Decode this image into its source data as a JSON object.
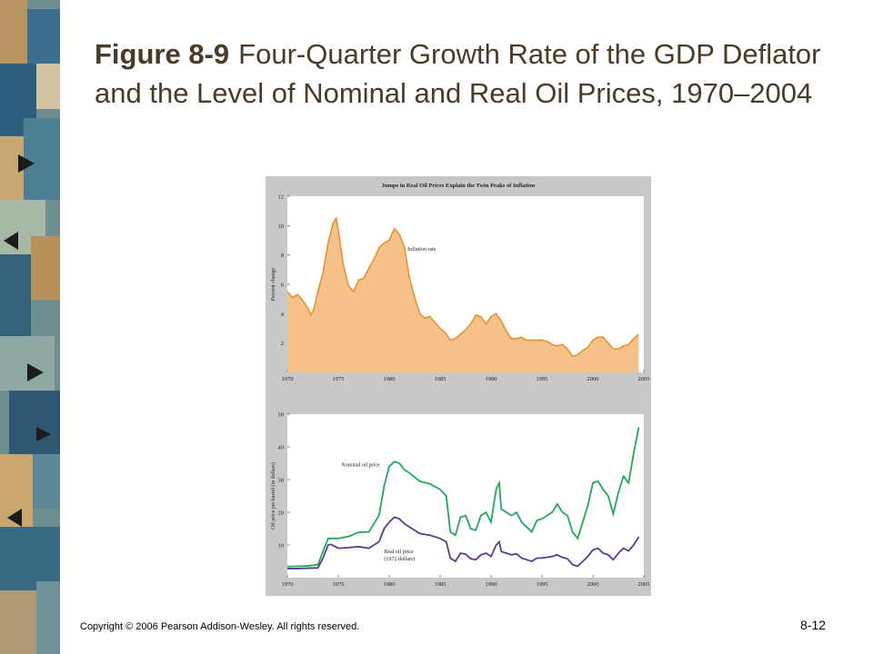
{
  "slide": {
    "figure_label": "Figure 8-9",
    "title": "Four-Quarter Growth Rate of the GDP Deflator and the Level of Nominal and Real Oil Prices, 1970–2004",
    "copyright": "Copyright © 2006 Pearson Addison-Wesley. All rights reserved.",
    "page_number": "8-12"
  },
  "colors": {
    "strip_blue": "#3c6e8e",
    "strip_tan": "#b89460",
    "panel_bg": "#c8c8c8",
    "plot_bg": "#ffffff",
    "inflation_fill": "#f6c28a",
    "inflation_line": "#e8922e",
    "nominal_line": "#1faa59",
    "real_line": "#5a3b8e"
  },
  "chart_data": [
    {
      "type": "area",
      "title": "Jumps in Real Oil Prices Explain the Twin Peaks of Inflation",
      "xlabel": "",
      "ylabel": "Percent change",
      "xlim": [
        1970,
        2005
      ],
      "ylim": [
        0,
        12
      ],
      "xticks": [
        "1970",
        "1975",
        "1980",
        "1985",
        "1990",
        "1995",
        "2000",
        "2005"
      ],
      "yticks": [
        "2",
        "4",
        "6",
        "8",
        "10",
        "12"
      ],
      "grid": false,
      "series": [
        {
          "name": "Inflation rate",
          "x": [
            1970,
            1970.5,
            1971,
            1971.5,
            1972,
            1972.3,
            1972.6,
            1973,
            1973.5,
            1974,
            1974.5,
            1974.8,
            1975.1,
            1975.5,
            1976,
            1976.5,
            1977,
            1977.5,
            1978,
            1978.5,
            1979,
            1979.5,
            1980,
            1980.5,
            1981,
            1981.5,
            1982,
            1982.5,
            1983,
            1983.5,
            1984,
            1984.5,
            1985,
            1985.5,
            1986,
            1986.5,
            1987,
            1987.5,
            1988,
            1988.5,
            1989,
            1989.5,
            1990,
            1990.5,
            1991,
            1991.5,
            1992,
            1992.5,
            1993,
            1993.5,
            1994,
            1994.5,
            1995,
            1995.5,
            1996,
            1996.5,
            1997,
            1997.5,
            1998,
            1998.5,
            1999,
            1999.5,
            2000,
            2000.5,
            2001,
            2001.5,
            2002,
            2002.5,
            2003,
            2003.5,
            2004,
            2004.5
          ],
          "values": [
            5.5,
            5.1,
            5.3,
            4.9,
            4.4,
            3.9,
            4.3,
            5.5,
            6.8,
            8.8,
            10.2,
            10.5,
            9.2,
            7.3,
            5.9,
            5.5,
            6.3,
            6.4,
            7.1,
            7.7,
            8.5,
            8.8,
            9.0,
            9.8,
            9.4,
            8.5,
            6.4,
            5.1,
            4.0,
            3.7,
            3.8,
            3.4,
            3.0,
            2.7,
            2.2,
            2.3,
            2.6,
            2.9,
            3.3,
            3.9,
            3.8,
            3.3,
            3.8,
            4.0,
            3.5,
            2.8,
            2.3,
            2.3,
            2.4,
            2.2,
            2.2,
            2.2,
            2.2,
            2.1,
            1.9,
            1.8,
            1.9,
            1.6,
            1.1,
            1.2,
            1.5,
            1.7,
            2.2,
            2.4,
            2.4,
            2.0,
            1.6,
            1.6,
            1.8,
            1.9,
            2.3,
            2.6
          ]
        }
      ]
    },
    {
      "type": "line",
      "title": "",
      "xlabel": "",
      "ylabel": "Oil price per barrel (in dollars)",
      "xlim": [
        1970,
        2005
      ],
      "ylim": [
        0,
        50
      ],
      "xticks": [
        "1970",
        "1975",
        "1980",
        "1985",
        "1990",
        "1995",
        "2000",
        "2005"
      ],
      "yticks": [
        "10",
        "20",
        "30",
        "40",
        "50"
      ],
      "grid": false,
      "series": [
        {
          "name": "Nominal oil price",
          "x": [
            1970,
            1971,
            1972,
            1973,
            1973.5,
            1974,
            1974.3,
            1975,
            1976,
            1977,
            1978,
            1979,
            1979.5,
            1980,
            1980.5,
            1981,
            1981.5,
            1982,
            1983,
            1984,
            1985,
            1985.6,
            1986,
            1986.5,
            1987,
            1987.5,
            1988,
            1988.5,
            1989,
            1989.5,
            1990,
            1990.5,
            1990.8,
            1991,
            1991.5,
            1992,
            1992.5,
            1993,
            1993.5,
            1994,
            1994.5,
            1995,
            1996,
            1996.5,
            1997,
            1997.5,
            1998,
            1998.5,
            1999,
            1999.5,
            2000,
            2000.5,
            2001,
            2001.5,
            2002,
            2002.5,
            2003,
            2003.5,
            2004,
            2004.5
          ],
          "values": [
            3.4,
            3.5,
            3.6,
            4.0,
            8.0,
            12.0,
            12.0,
            12.0,
            12.6,
            13.9,
            14.0,
            19.0,
            28.0,
            34.0,
            35.5,
            35.0,
            33.0,
            32.0,
            29.5,
            28.7,
            27.0,
            25.0,
            14.0,
            13.0,
            18.5,
            19.0,
            15.0,
            14.5,
            19.0,
            20.0,
            17.0,
            27.0,
            29.0,
            21.0,
            20.0,
            19.0,
            20.0,
            17.0,
            15.5,
            14.0,
            17.5,
            18.0,
            20.0,
            22.5,
            20.0,
            19.0,
            14.0,
            12.0,
            17.0,
            22.0,
            29.0,
            29.5,
            27.0,
            25.0,
            19.5,
            26.0,
            31.0,
            29.0,
            38.0,
            46.0
          ]
        },
        {
          "name": "Real oil price (1972 dollars)",
          "x": [
            1970,
            1971,
            1972,
            1973,
            1973.5,
            1974,
            1974.3,
            1975,
            1976,
            1977,
            1978,
            1979,
            1979.5,
            1980,
            1980.5,
            1981,
            1981.5,
            1982,
            1983,
            1984,
            1985,
            1985.6,
            1986,
            1986.5,
            1987,
            1987.5,
            1988,
            1988.5,
            1989,
            1989.5,
            1990,
            1990.5,
            1990.8,
            1991,
            1991.5,
            1992,
            1992.5,
            1993,
            1993.5,
            1994,
            1994.5,
            1995,
            1996,
            1996.5,
            1997,
            1997.5,
            1998,
            1998.5,
            1999,
            1999.5,
            2000,
            2000.5,
            2001,
            2001.5,
            2002,
            2002.5,
            2003,
            2003.5,
            2004,
            2004.5
          ],
          "values": [
            2.8,
            2.8,
            2.9,
            3.0,
            6.0,
            10.0,
            10.2,
            9.0,
            9.2,
            9.5,
            9.0,
            11.0,
            15.0,
            17.0,
            18.5,
            18.0,
            16.5,
            15.5,
            13.5,
            13.0,
            12.0,
            11.0,
            6.0,
            5.0,
            7.5,
            7.2,
            5.8,
            5.5,
            7.0,
            7.5,
            6.5,
            10.0,
            11.0,
            8.0,
            7.5,
            7.0,
            7.3,
            6.0,
            5.5,
            5.0,
            6.0,
            6.0,
            6.5,
            7.0,
            6.2,
            5.8,
            4.0,
            3.5,
            5.0,
            6.5,
            8.5,
            9.0,
            7.5,
            7.0,
            5.5,
            7.5,
            9.0,
            8.2,
            10.0,
            12.5
          ]
        }
      ]
    }
  ]
}
